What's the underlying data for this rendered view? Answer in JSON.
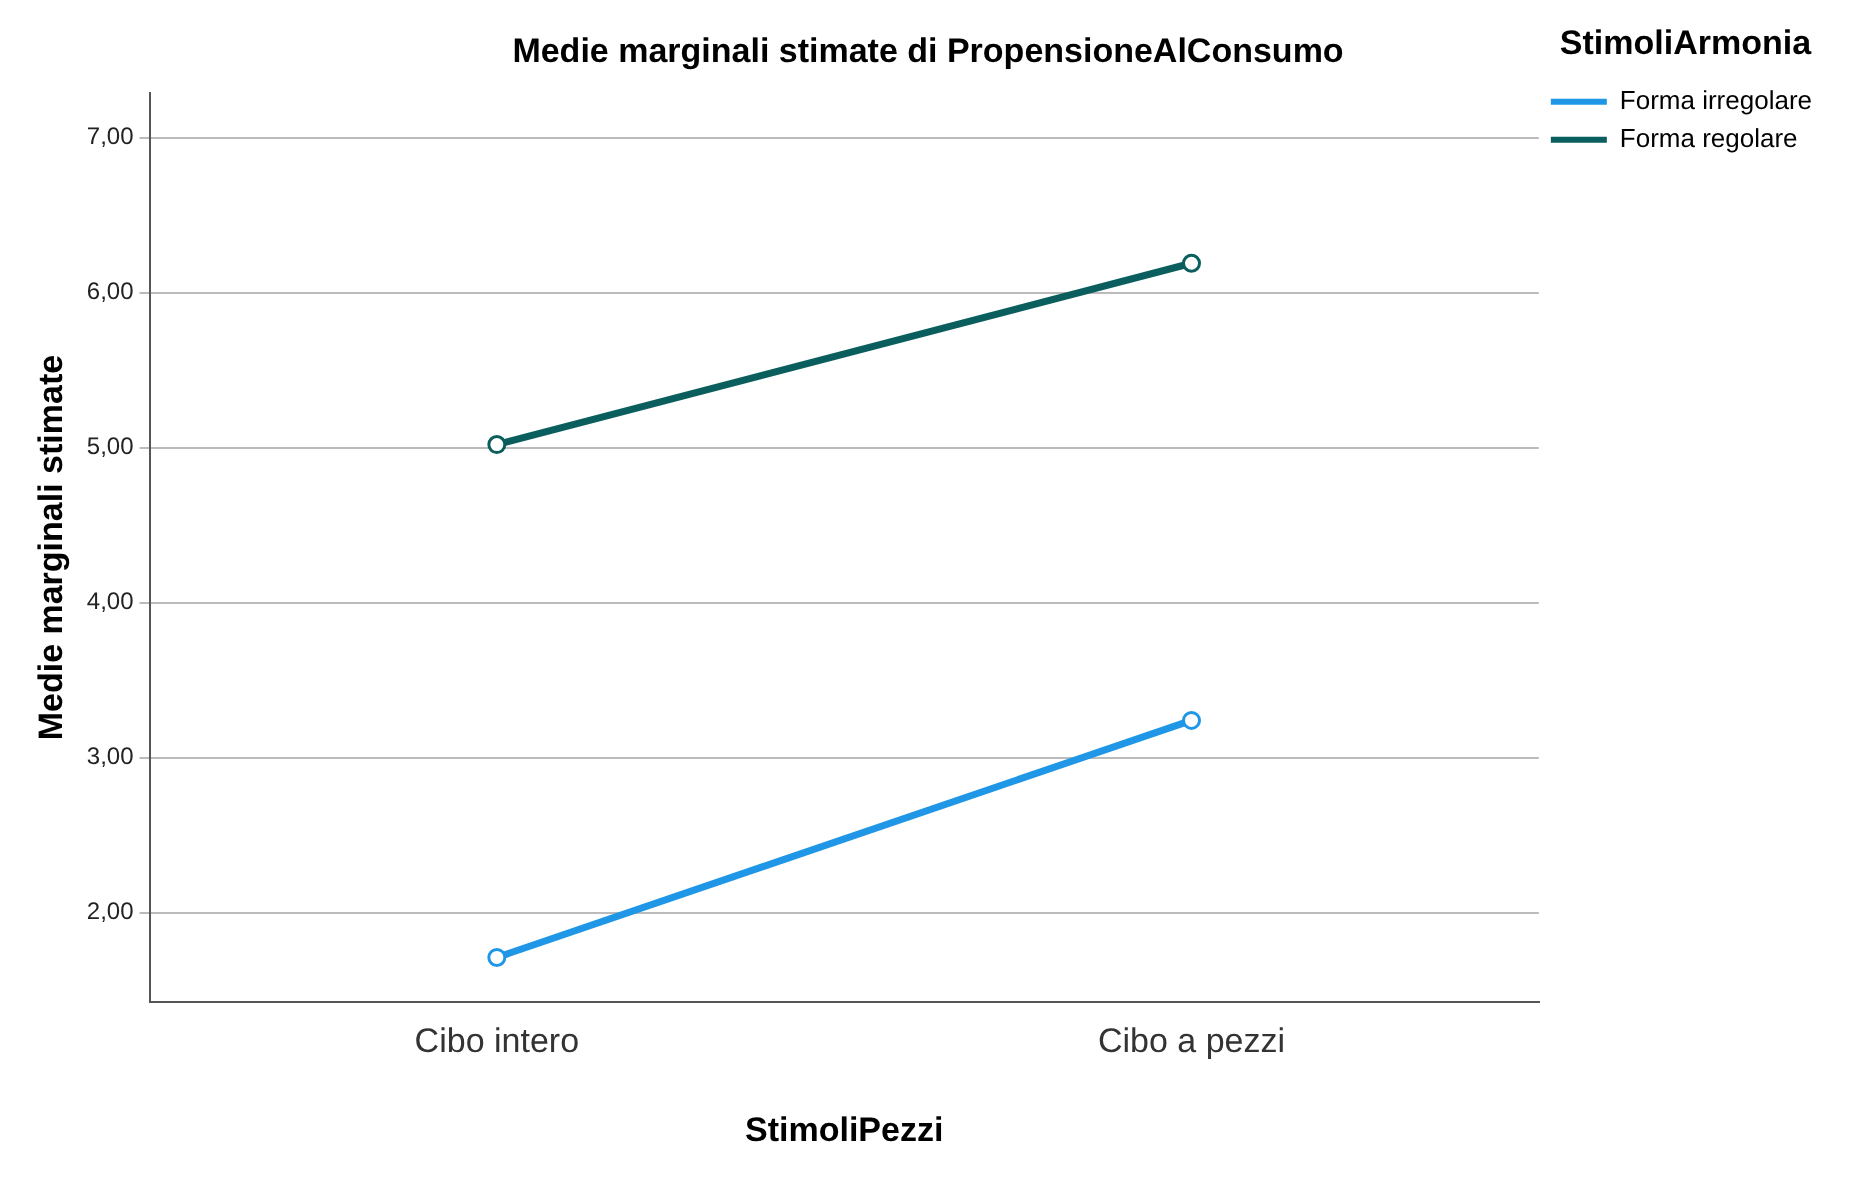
{
  "chart_data": {
    "type": "line",
    "title": "Medie marginali stimate di PropensioneAlConsumo",
    "xlabel": "StimoliPezzi",
    "ylabel": "Medie marginali stimate",
    "legend_title": "StimoliArmonia",
    "categories": [
      "Cibo intero",
      "Cibo a pezzi"
    ],
    "series": [
      {
        "name": "Forma irregolare",
        "color": "#1f97e6",
        "values": [
          1.71,
          3.24
        ]
      },
      {
        "name": "Forma regolare",
        "color": "#0b5e5e",
        "values": [
          5.02,
          6.19
        ]
      }
    ],
    "ylim": [
      1.42,
      7.29
    ],
    "yticks": [
      {
        "value": 2,
        "label": "2,00"
      },
      {
        "value": 3,
        "label": "3,00"
      },
      {
        "value": 4,
        "label": "4,00"
      },
      {
        "value": 5,
        "label": "5,00"
      },
      {
        "value": 6,
        "label": "6,00"
      },
      {
        "value": 7,
        "label": "7,00"
      }
    ],
    "grid": "y",
    "legend": "right top",
    "marker": "circle",
    "line_style": "solid"
  }
}
